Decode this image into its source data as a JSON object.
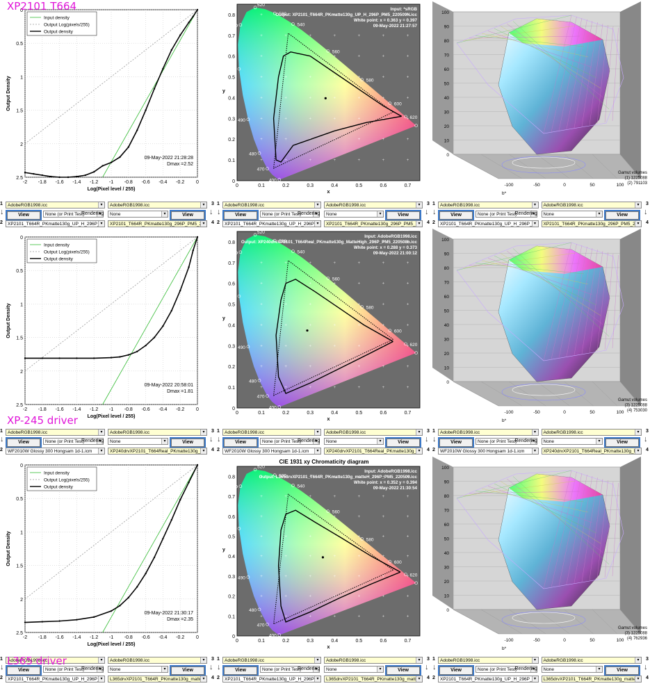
{
  "annotations": [
    "XP2101 T664",
    "XP-245 driver",
    "L365 driver"
  ],
  "density": {
    "legend": [
      "Input density",
      "Output Log(pixels/255)",
      "Output density"
    ],
    "xlabel": "Log(Pixel level / 255)",
    "ylabel": "Output Density",
    "xticks": [
      "-2",
      "-1.8",
      "-1.6",
      "-1.4",
      "-1.2",
      "-1",
      "-0.8",
      "-0.6",
      "-0.4",
      "-0.2",
      "0"
    ],
    "yticks": [
      "0",
      "0.5",
      "1",
      "1.5",
      "2",
      "2.5"
    ]
  },
  "chroma": {
    "xlabel": "x",
    "ylabel": "y",
    "xticks": [
      "0",
      "0.1",
      "0.2",
      "0.3",
      "0.4",
      "0.5",
      "0.6",
      "0.7"
    ],
    "yticks": [
      "0",
      "0.1",
      "0.2",
      "0.3",
      "0.4",
      "0.5",
      "0.6",
      "0.7",
      "0.8"
    ],
    "wavelengths": [
      "400",
      "470",
      "480",
      "490",
      "500",
      "510",
      "520",
      "530",
      "540",
      "560",
      "580",
      "600",
      "620",
      "700"
    ]
  },
  "gamut": {
    "axis_b": "b*",
    "yticks": [
      "0",
      "10",
      "20",
      "30",
      "40",
      "50",
      "60",
      "70",
      "80",
      "90",
      "100"
    ],
    "xticks": [
      "-100",
      "-50",
      "0",
      "50",
      "100"
    ]
  },
  "controls": {
    "view": "View",
    "rendering": "Rendering",
    "n1": "1",
    "n2": "2",
    "n3": "3",
    "n4": "4"
  },
  "rows": [
    {
      "timestamp": "09-May-2022 21:28:28",
      "dmax": "Dmax =2.52",
      "chroma_title": "",
      "chroma_info": [
        "Input: *sRGB",
        "Output: XP2101_T664R_PKmatte130g_UP_H_296P_PM5_220509N.icc",
        "White point:  x = 0.363  y = 0.397",
        "09-May-2022 21:27:57"
      ],
      "gamut_volumes": [
        "Gamut volumes",
        "(1)  1225088",
        "(2)  791103"
      ],
      "controls": [
        {
          "dd1": "AdobeRGB1998.icc",
          "dd2": "None (or Print Test)",
          "dd3": "XP2101_T664R_PKmatte130g_UP_H_296P_PK",
          "dd4": "AdobeRGB1998.icc",
          "dd5": "None",
          "dd6": "XP2101_T664R_PKmatte130g_296P_PM5_220"
        },
        {
          "dd1": "AdobeRGB1998.icc",
          "dd2": "None (or Print Test)",
          "dd3": "XP2101_T664R_PKmatte130g_UP_H_296P_PK",
          "dd4": "AdobeRGB1998.icc",
          "dd5": "None",
          "dd6": "XP2101_T664R_PKmatte130g_296P_PM5_220"
        },
        {
          "dd1": "AdobeRGB1998.icc",
          "dd2": "None (or Print Test)",
          "dd3": "XP2101_T664R_PKmatte130g_UP_H_296P_PK",
          "dd4": "AdobeRGB1998.icc",
          "dd5": "None",
          "dd6": "XP2101_T664R_PKmatte130g_296P_PM5_220"
        }
      ]
    },
    {
      "timestamp": "09-May-2022 20:58:01",
      "dmax": "Dmax =1.81",
      "chroma_title": "",
      "chroma_info": [
        "Input: AdobeRGB1998.icc",
        "Output: XP240drvXP2101_T664Real_PKmatte130g_MatteHigh_296P_PM5_220508b.icc",
        "White point:  x = 0.288  y = 0.373",
        "09-May-2022 21:00:12"
      ],
      "gamut_volumes": [
        "Gamut volumes",
        "(3)  1225088",
        "(4)  753030"
      ],
      "controls": [
        {
          "dd1": "AdobeRGB1998.icc",
          "dd2": "None (or Print Test)",
          "dd3": "WF2010W Glossy 300 Hongsam 1d-1.icm",
          "dd4": "AdobeRGB1998.icc",
          "dd5": "None",
          "dd6": "XP240drvXP2101_T664Real_PKmatte130g_Ma"
        },
        {
          "dd1": "AdobeRGB1998.icc",
          "dd2": "None (or Print Test)",
          "dd3": "WF2010W Glossy 300 Hongsam 1d-1.icm",
          "dd4": "AdobeRGB1998.icc",
          "dd5": "None",
          "dd6": "XP240drvXP2101_T664Real_PKmatte130g_Ma"
        },
        {
          "dd1": "AdobeRGB1998.icc",
          "dd2": "None (or Print Test)",
          "dd3": "WF2010W Glossy 300 Hongsam 1d-1.icm",
          "dd4": "AdobeRGB1998.icc",
          "dd5": "None",
          "dd6": "XP240drvXP2101_T664Real_PKmatte130g_Ma"
        }
      ]
    },
    {
      "timestamp": "09-May-2022 21:30:17",
      "dmax": "Dmax =2.35",
      "chroma_title": "CIE 1931 xy Chromaticity diagram",
      "chroma_info": [
        "Input: AdobeRGB1998.icc",
        "Output: L365drvXP2101_T664R_PKmatte130g_matteH_296P_PM5_220509.icc",
        "White point:  x = 0.352  y = 0.394",
        "09-May-2022 21:30:54"
      ],
      "gamut_volumes": [
        "Gamut volumes",
        "(3)  1225088",
        "(4)  762936"
      ],
      "controls": [
        {
          "dd1": "AdobeRGB1998.icc",
          "dd2": "None (or Print Test)",
          "dd3": "XP2101_T664R_PKmatte130g_UP_H_296P_PK",
          "dd4": "AdobeRGB1998.icc",
          "dd5": "None",
          "dd6": "L365drvXP2101_T664R_PKmatte130g_matteH"
        },
        {
          "dd1": "AdobeRGB1998.icc",
          "dd2": "None (or Print Test)",
          "dd3": "XP2101_T664R_PKmatte130g_UP_H_296P_PK",
          "dd4": "AdobeRGB1998.icc",
          "dd5": "None",
          "dd6": "L365drvXP2101_T664R_PKmatte130g_matteH"
        },
        {
          "dd1": "AdobeRGB1998.icc",
          "dd2": "None (or Print Test)",
          "dd3": "XP2101_T664R_PKmatte130g_UP_H_296P_PK",
          "dd4": "AdobeRGB1998.icc",
          "dd5": "None",
          "dd6": "L365drvXP2101_T664R_PKmatte130g_matteH"
        }
      ]
    }
  ],
  "chart_data": [
    {
      "type": "line",
      "title": "",
      "xlabel": "Log(Pixel level / 255)",
      "ylabel": "Output Density",
      "xlim": [
        -2,
        0
      ],
      "ylim": [
        0,
        2.5
      ],
      "y_reversed": true,
      "grid": true,
      "legend": "top-left",
      "series": [
        {
          "name": "Input density",
          "color": "#33bb33",
          "x": [
            -1.1,
            0
          ],
          "y": [
            2.5,
            0
          ]
        },
        {
          "name": "Output Log(pixels/255)",
          "color": "#999999",
          "x": [
            -2,
            0
          ],
          "y": [
            2.0,
            0
          ]
        },
        {
          "name": "Output density",
          "color": "#000000",
          "x": [
            -2,
            -1.9,
            -1.8,
            -1.7,
            -1.6,
            -1.5,
            -1.4,
            -1.3,
            -1.2,
            -1.1,
            -1.0,
            -0.9,
            -0.8,
            -0.7,
            -0.6,
            -0.5,
            -0.4,
            -0.3,
            -0.2,
            -0.1,
            -0.05,
            0
          ],
          "y": [
            2.43,
            2.45,
            2.47,
            2.49,
            2.5,
            2.5,
            2.49,
            2.47,
            2.42,
            2.33,
            2.28,
            2.2,
            2.05,
            1.8,
            1.5,
            1.18,
            0.88,
            0.6,
            0.38,
            0.19,
            0.1,
            0
          ]
        }
      ]
    },
    {
      "type": "line",
      "title": "",
      "xlabel": "Log(Pixel level / 255)",
      "ylabel": "Output Density",
      "xlim": [
        -2,
        0
      ],
      "ylim": [
        0,
        2.5
      ],
      "y_reversed": true,
      "grid": true,
      "legend": "top-left",
      "series": [
        {
          "name": "Input density",
          "color": "#33bb33",
          "x": [
            -1.1,
            0
          ],
          "y": [
            2.5,
            0
          ]
        },
        {
          "name": "Output Log(pixels/255)",
          "color": "#999999",
          "x": [
            -2,
            0
          ],
          "y": [
            2.0,
            0
          ]
        },
        {
          "name": "Output density",
          "color": "#000000",
          "x": [
            -2,
            -1.8,
            -1.6,
            -1.4,
            -1.2,
            -1.0,
            -0.9,
            -0.8,
            -0.7,
            -0.6,
            -0.5,
            -0.4,
            -0.3,
            -0.2,
            -0.1,
            -0.05,
            0
          ],
          "y": [
            1.81,
            1.81,
            1.81,
            1.81,
            1.81,
            1.8,
            1.79,
            1.76,
            1.71,
            1.62,
            1.5,
            1.33,
            1.1,
            0.8,
            0.45,
            0.2,
            0
          ]
        }
      ]
    },
    {
      "type": "line",
      "title": "",
      "xlabel": "Log(Pixel level / 255)",
      "ylabel": "Output Density",
      "xlim": [
        -2,
        0
      ],
      "ylim": [
        0,
        2.5
      ],
      "y_reversed": true,
      "grid": true,
      "legend": "top-left",
      "series": [
        {
          "name": "Input density",
          "color": "#33bb33",
          "x": [
            -1.1,
            0
          ],
          "y": [
            2.5,
            0
          ]
        },
        {
          "name": "Output Log(pixels/255)",
          "color": "#999999",
          "x": [
            -2,
            0
          ],
          "y": [
            2.0,
            0
          ]
        },
        {
          "name": "Output density",
          "color": "#000000",
          "x": [
            -2,
            -1.8,
            -1.6,
            -1.4,
            -1.2,
            -1.0,
            -0.9,
            -0.8,
            -0.7,
            -0.6,
            -0.5,
            -0.4,
            -0.3,
            -0.2,
            -0.1,
            0
          ],
          "y": [
            2.35,
            2.34,
            2.33,
            2.31,
            2.27,
            2.18,
            2.1,
            1.98,
            1.82,
            1.62,
            1.38,
            1.1,
            0.82,
            0.52,
            0.26,
            0
          ]
        }
      ]
    },
    {
      "type": "scatter",
      "title": "",
      "xlabel": "x",
      "ylabel": "y",
      "xlim": [
        0,
        0.75
      ],
      "ylim": [
        0,
        0.85
      ],
      "series": [
        {
          "name": "",
          "kind": "reference-gamut-dotted",
          "x": [
            0.64,
            0.21,
            0.15,
            0.64
          ],
          "y": [
            0.33,
            0.71,
            0.06,
            0.33
          ]
        },
        {
          "name": "",
          "kind": "output-gamut",
          "x": [
            0.675,
            0.53,
            0.4,
            0.23,
            0.18,
            0.16,
            0.15,
            0.17,
            0.19,
            0.22,
            0.3,
            0.4,
            0.5,
            0.6,
            0.675
          ],
          "y": [
            0.31,
            0.28,
            0.24,
            0.17,
            0.09,
            0.1,
            0.3,
            0.5,
            0.6,
            0.62,
            0.6,
            0.52,
            0.44,
            0.36,
            0.31
          ]
        },
        {
          "name": "",
          "kind": "white-point",
          "x": [
            0.363
          ],
          "y": [
            0.397
          ]
        }
      ]
    },
    {
      "type": "scatter",
      "title": "",
      "xlabel": "x",
      "ylabel": "y",
      "xlim": [
        0,
        0.75
      ],
      "ylim": [
        0,
        0.85
      ],
      "series": [
        {
          "name": "",
          "kind": "reference-gamut-dotted",
          "x": [
            0.64,
            0.21,
            0.15,
            0.64
          ],
          "y": [
            0.33,
            0.71,
            0.06,
            0.33
          ]
        },
        {
          "name": "",
          "kind": "output-gamut",
          "x": [
            0.64,
            0.54,
            0.42,
            0.3,
            0.2,
            0.17,
            0.16,
            0.18,
            0.2,
            0.24,
            0.32,
            0.42,
            0.52,
            0.64
          ],
          "y": [
            0.32,
            0.26,
            0.19,
            0.12,
            0.07,
            0.15,
            0.35,
            0.52,
            0.6,
            0.62,
            0.56,
            0.48,
            0.4,
            0.32
          ]
        },
        {
          "name": "",
          "kind": "white-point",
          "x": [
            0.288
          ],
          "y": [
            0.373
          ]
        }
      ]
    },
    {
      "type": "scatter",
      "title": "CIE 1931 xy Chromaticity diagram",
      "xlabel": "x",
      "ylabel": "y",
      "xlim": [
        0,
        0.75
      ],
      "ylim": [
        0,
        0.85
      ],
      "series": [
        {
          "name": "",
          "kind": "reference-gamut-dotted",
          "x": [
            0.64,
            0.21,
            0.15,
            0.64
          ],
          "y": [
            0.33,
            0.71,
            0.06,
            0.33
          ]
        },
        {
          "name": "",
          "kind": "output-gamut",
          "x": [
            0.67,
            0.55,
            0.42,
            0.3,
            0.2,
            0.18,
            0.17,
            0.18,
            0.2,
            0.24,
            0.32,
            0.43,
            0.55,
            0.67
          ],
          "y": [
            0.32,
            0.26,
            0.19,
            0.12,
            0.07,
            0.15,
            0.35,
            0.53,
            0.61,
            0.63,
            0.57,
            0.49,
            0.4,
            0.32
          ]
        },
        {
          "name": "",
          "kind": "white-point",
          "x": [
            0.352
          ],
          "y": [
            0.394
          ]
        }
      ]
    },
    {
      "type": "other",
      "title": "",
      "subtype": "3d-gamut-volume",
      "volumes": [
        1225088,
        791103
      ]
    },
    {
      "type": "other",
      "title": "",
      "subtype": "3d-gamut-volume",
      "volumes": [
        1225088,
        753030
      ]
    },
    {
      "type": "other",
      "title": "",
      "subtype": "3d-gamut-volume",
      "volumes": [
        1225088,
        762936
      ]
    }
  ]
}
